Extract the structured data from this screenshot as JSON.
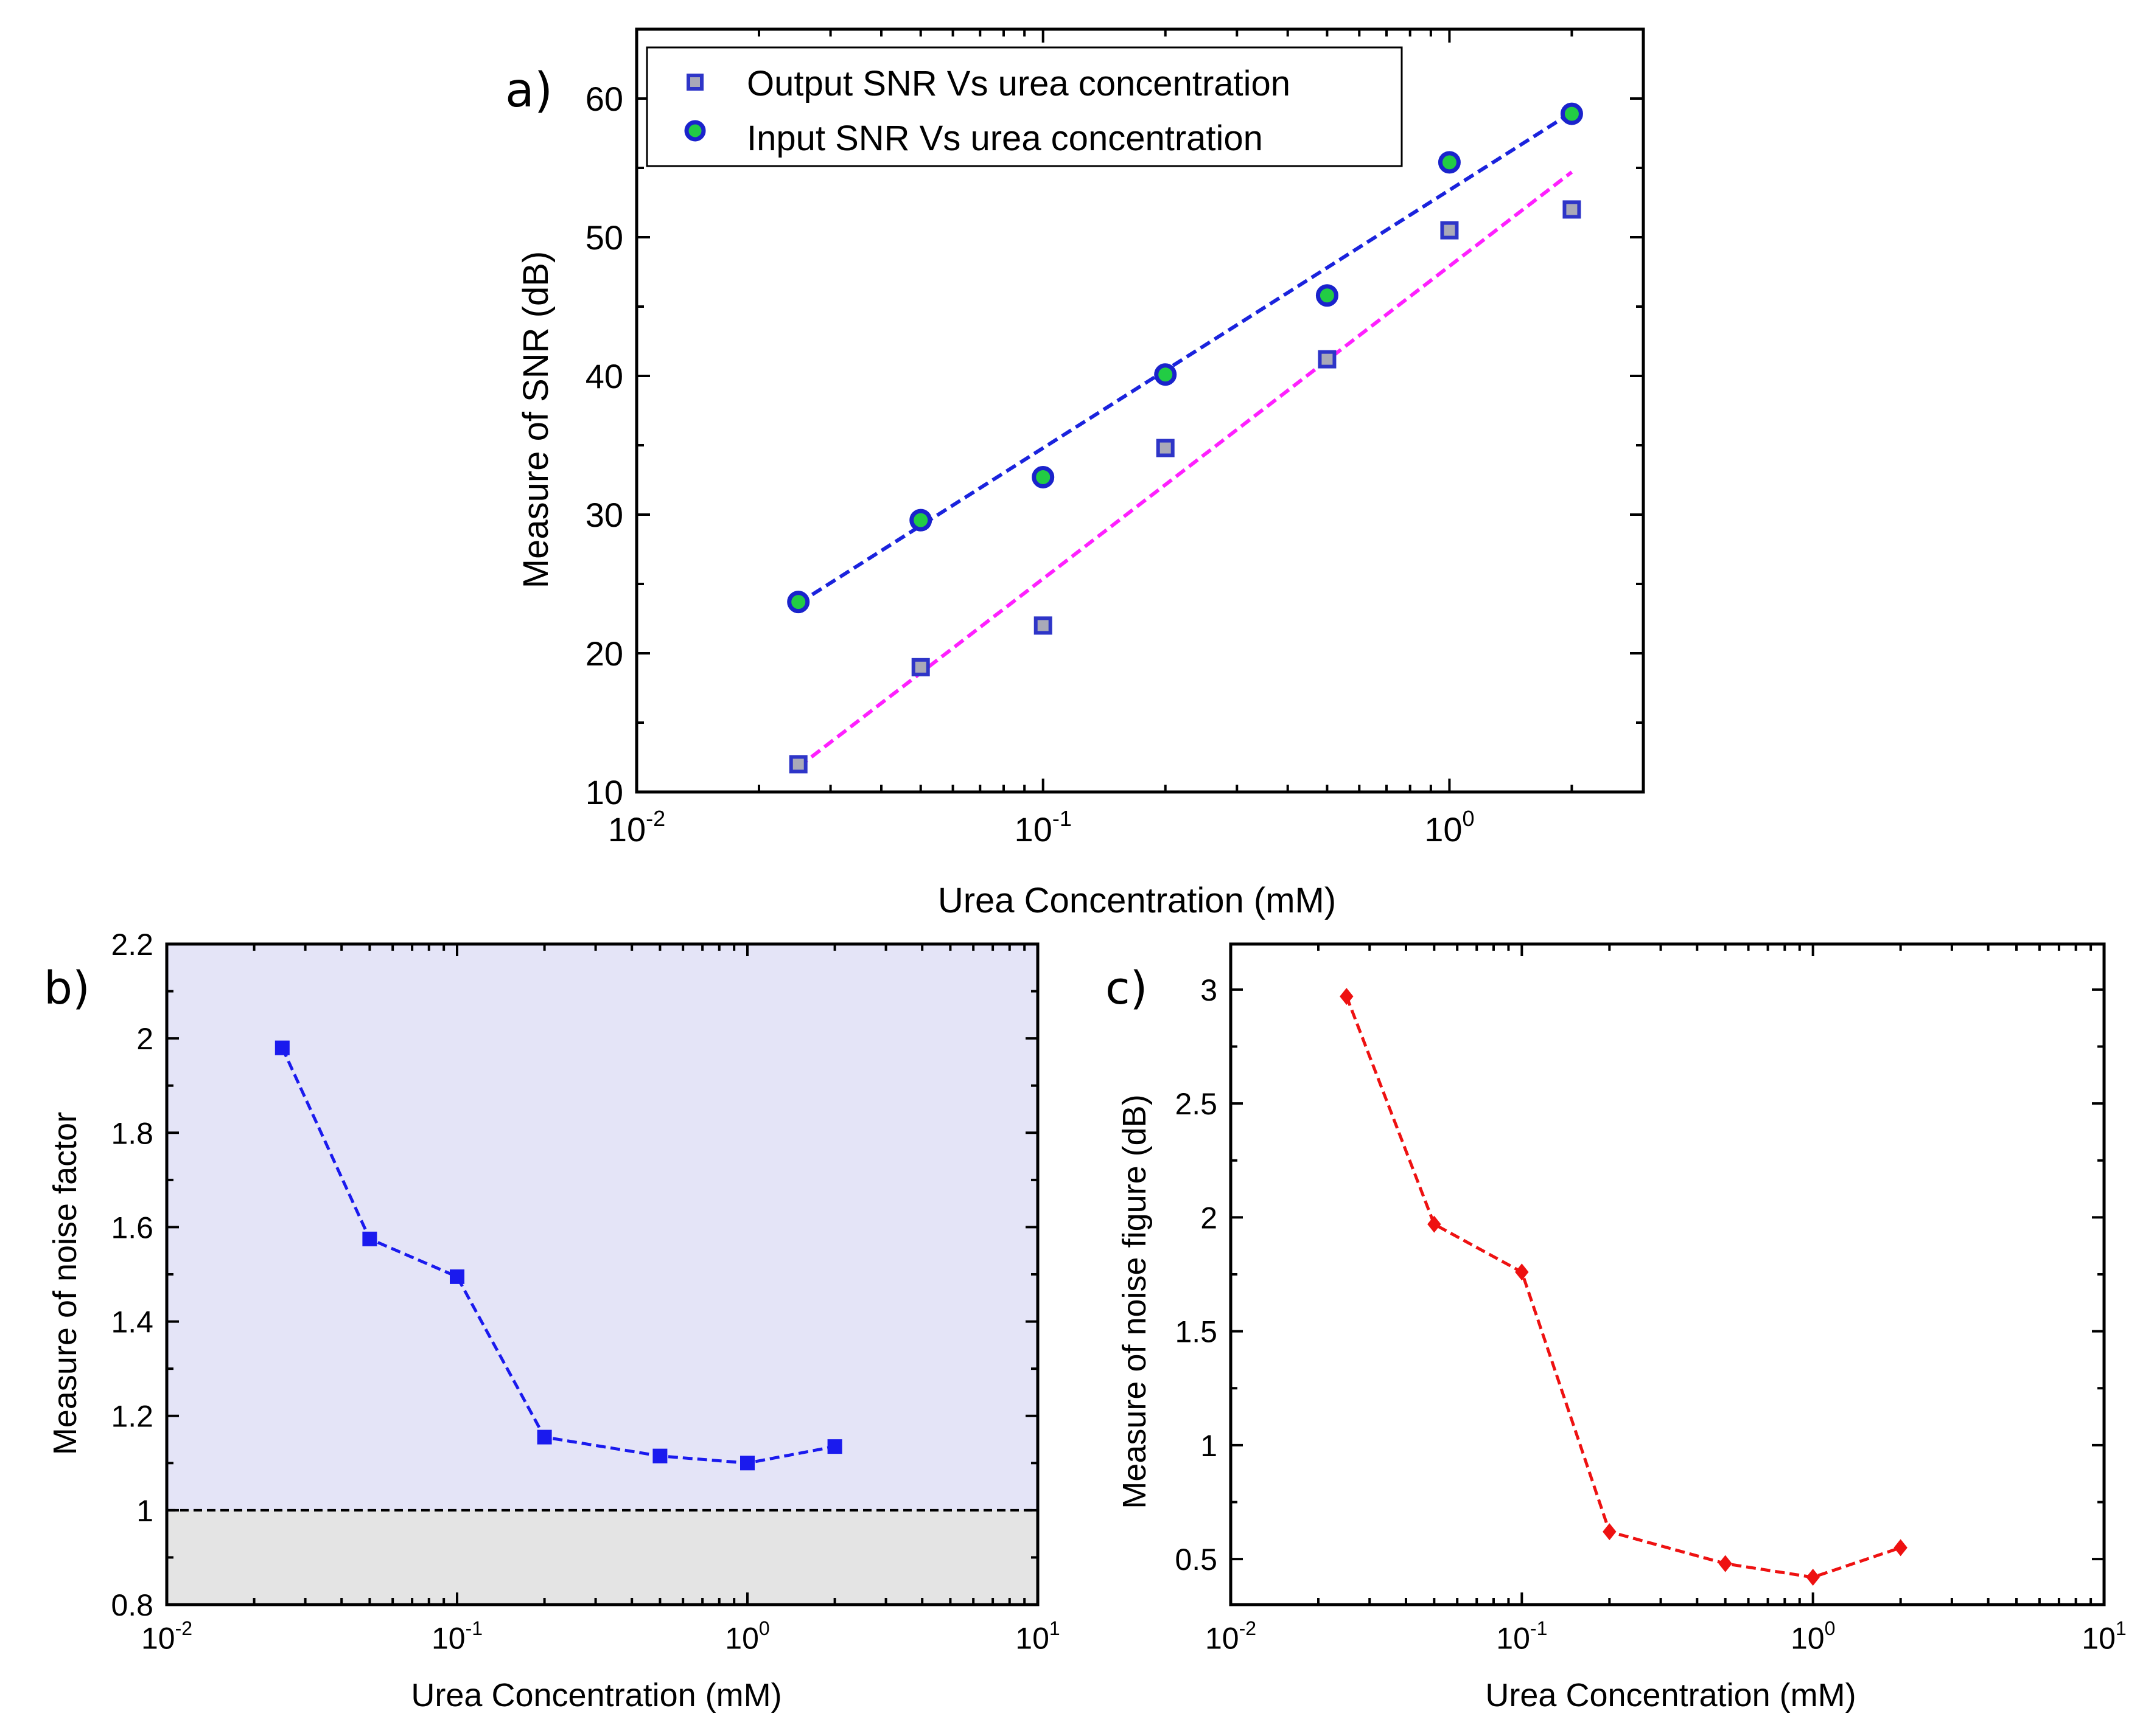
{
  "chart_data": [
    {
      "id": "a",
      "type": "scatter",
      "panel_label": "a)",
      "xscale": "log",
      "xlim": [
        0.01,
        3
      ],
      "ylim": [
        10,
        65
      ],
      "xlabel": "Urea Concentration (mM)",
      "ylabel": "Measure of SNR (dB)",
      "x_ticks": [
        {
          "value": 0.01,
          "base": "10",
          "exp": "-2"
        },
        {
          "value": 0.1,
          "base": "10",
          "exp": "-1"
        },
        {
          "value": 1,
          "base": "10",
          "exp": "0"
        }
      ],
      "y_ticks": [
        "10",
        "20",
        "30",
        "40",
        "50",
        "60"
      ],
      "legend_position": "top-left",
      "series": [
        {
          "name": "Output SNR Vs urea concentration",
          "marker": "square",
          "color": "#a9a9b8",
          "edge_color": "#2e35c8",
          "x": [
            0.025,
            0.05,
            0.1,
            0.2,
            0.5,
            1,
            2
          ],
          "y": [
            12.0,
            19.0,
            22.0,
            34.8,
            41.2,
            50.5,
            52.0
          ],
          "fit": {
            "color": "#ff20ff",
            "x": [
              0.025,
              2
            ],
            "y": [
              11.8,
              54.7
            ]
          }
        },
        {
          "name": "Input SNR Vs urea concentration",
          "marker": "circle",
          "color": "#22cc44",
          "edge_color": "#1a23cc",
          "x": [
            0.025,
            0.05,
            0.1,
            0.2,
            0.5,
            1,
            2
          ],
          "y": [
            23.7,
            29.6,
            32.7,
            40.1,
            45.8,
            55.4,
            58.9
          ],
          "fit": {
            "color": "#1a23dd",
            "x": [
              0.025,
              2
            ],
            "y": [
              23.6,
              59.0
            ]
          }
        }
      ]
    },
    {
      "id": "b",
      "type": "line",
      "panel_label": "b)",
      "xscale": "log",
      "xlim": [
        0.01,
        10
      ],
      "ylim": [
        0.8,
        2.2
      ],
      "xlabel": "Urea Concentration (mM)",
      "ylabel": "Measure of noise factor",
      "x_ticks": [
        {
          "value": 0.01,
          "base": "10",
          "exp": "-2"
        },
        {
          "value": 0.1,
          "base": "10",
          "exp": "-1"
        },
        {
          "value": 1,
          "base": "10",
          "exp": "0"
        },
        {
          "value": 10,
          "base": "10",
          "exp": "1"
        }
      ],
      "y_ticks": [
        "0.8",
        "1",
        "1.2",
        "1.4",
        "1.6",
        "1.8",
        "2",
        "2.2"
      ],
      "reference_line": 1,
      "region_above_color": "#e4e4f7",
      "region_below_color": "#e4e4e4",
      "series": [
        {
          "name": "Noise factor",
          "marker": "square",
          "color": "#1a1aee",
          "x": [
            0.025,
            0.05,
            0.1,
            0.2,
            0.5,
            1,
            2
          ],
          "y": [
            1.98,
            1.575,
            1.495,
            1.155,
            1.115,
            1.1,
            1.135
          ]
        }
      ]
    },
    {
      "id": "c",
      "type": "line",
      "panel_label": "c)",
      "xscale": "log",
      "xlim": [
        0.01,
        10
      ],
      "ylim": [
        0.3,
        3.2
      ],
      "xlabel": "Urea Concentration (mM)",
      "ylabel": "Measure of noise figure (dB)",
      "x_ticks": [
        {
          "value": 0.01,
          "base": "10",
          "exp": "-2"
        },
        {
          "value": 0.1,
          "base": "10",
          "exp": "-1"
        },
        {
          "value": 1,
          "base": "10",
          "exp": "0"
        },
        {
          "value": 10,
          "base": "10",
          "exp": "1"
        }
      ],
      "y_ticks": [
        "0.5",
        "1",
        "1.5",
        "2",
        "2.5",
        "3"
      ],
      "series": [
        {
          "name": "Noise figure",
          "marker": "diamond",
          "color": "#ee1111",
          "x": [
            0.025,
            0.05,
            0.1,
            0.2,
            0.5,
            1,
            2
          ],
          "y": [
            2.97,
            1.97,
            1.76,
            0.62,
            0.48,
            0.42,
            0.55
          ]
        }
      ]
    }
  ]
}
